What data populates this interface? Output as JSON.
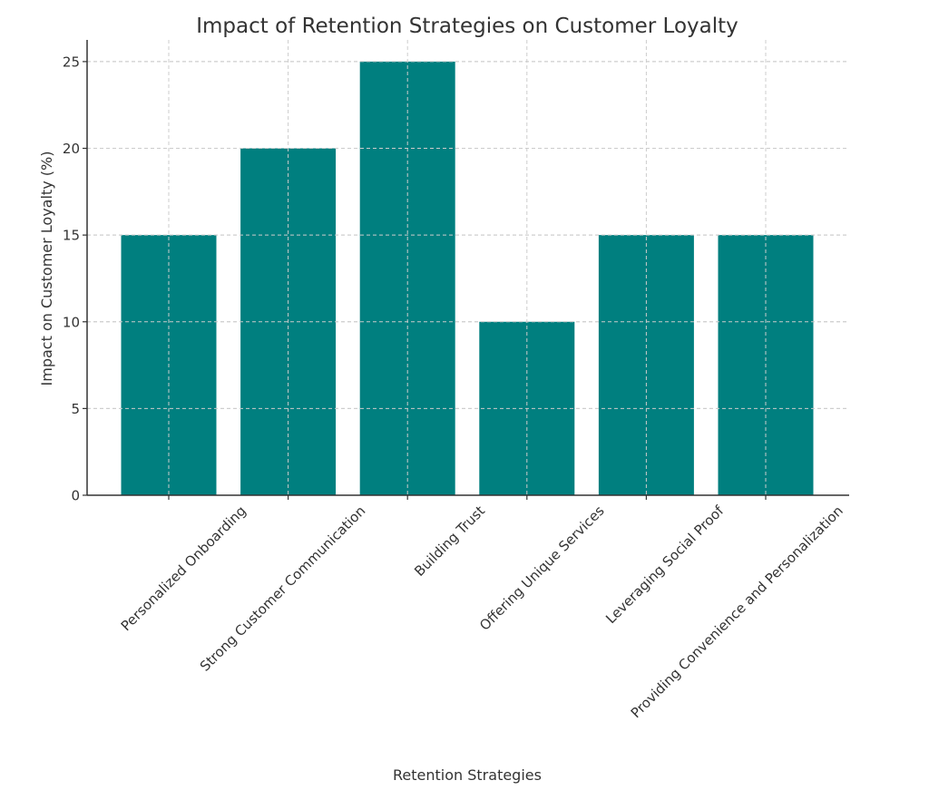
{
  "chart_data": {
    "type": "bar",
    "title": "Impact of Retention Strategies on Customer Loyalty",
    "xlabel": "Retention Strategies",
    "ylabel": "Impact on Customer Loyalty (%)",
    "categories": [
      "Personalized Onboarding",
      "Strong Customer Communication",
      "Building Trust",
      "Offering Unique Services",
      "Leveraging Social Proof",
      "Providing Convenience and Personalization"
    ],
    "values": [
      15,
      20,
      25,
      10,
      15,
      15
    ],
    "ylim": [
      0,
      26.25
    ],
    "yticks": [
      0,
      5,
      10,
      15,
      20,
      25
    ],
    "grid": true,
    "bar_color": "#007f7f"
  }
}
